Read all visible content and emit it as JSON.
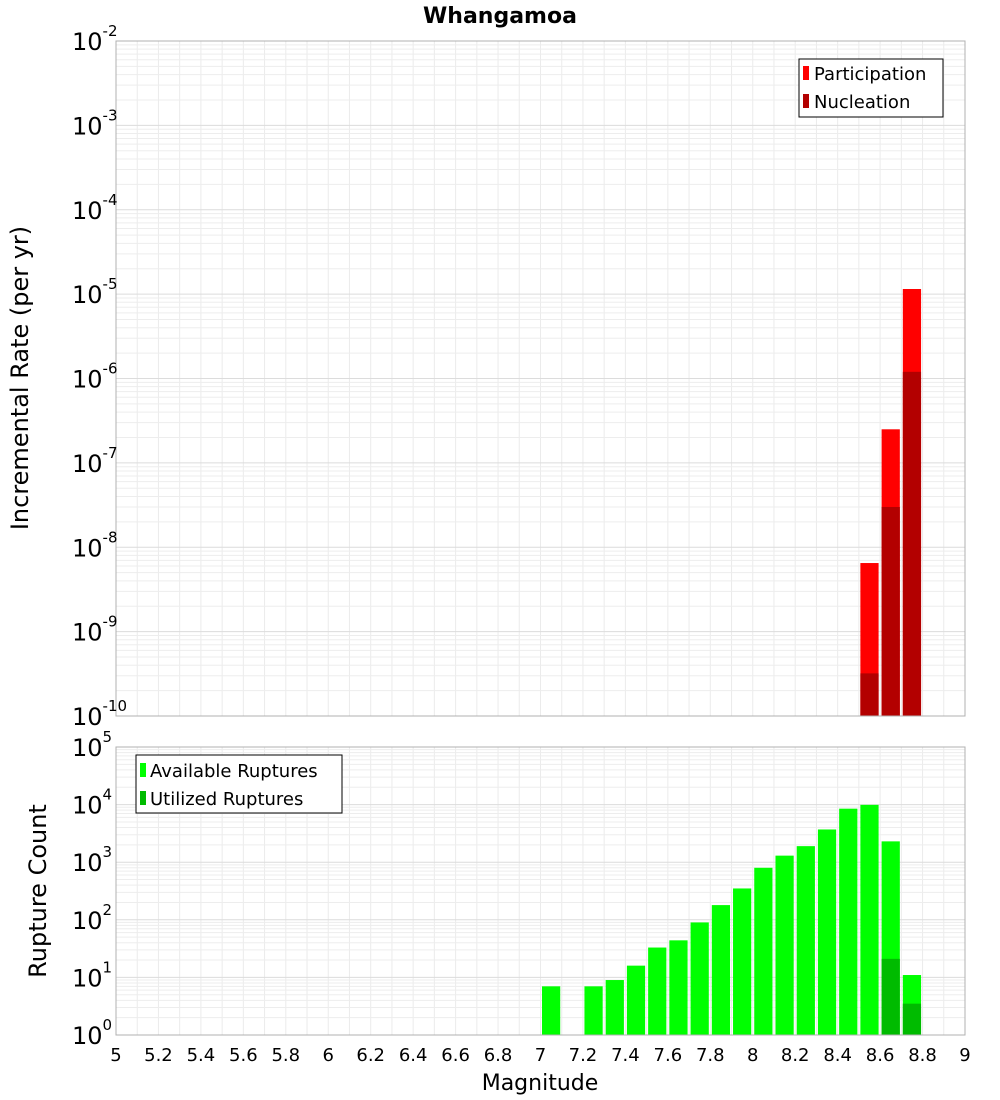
{
  "chart_data": [
    {
      "type": "bar",
      "title": "Whangamoa",
      "ylabel": "Incremental Rate (per yr)",
      "xlabel": "",
      "yscale": "log",
      "ylim_exp": [
        -10,
        -2
      ],
      "xlim": [
        5,
        9
      ],
      "bar_width": 0.1,
      "grid": true,
      "legend_position": "top-right",
      "series": [
        {
          "name": "Participation",
          "color": "#ff0000",
          "x": [
            8.55,
            8.65,
            8.75
          ],
          "values": [
            6.5e-09,
            2.5e-07,
            1.15e-05
          ]
        },
        {
          "name": "Nucleation",
          "color": "#b30000",
          "x": [
            8.55,
            8.65,
            8.75
          ],
          "values": [
            3.2e-10,
            3e-08,
            1.2e-06
          ]
        }
      ]
    },
    {
      "type": "bar",
      "title": "",
      "ylabel": "Rupture Count",
      "xlabel": "Magnitude",
      "yscale": "log",
      "ylim_exp": [
        0,
        5
      ],
      "xlim": [
        5,
        9
      ],
      "bar_width": 0.1,
      "grid": true,
      "legend_position": "top-left",
      "xticks": [
        "5",
        "5.2",
        "5.4",
        "5.6",
        "5.8",
        "6",
        "6.2",
        "6.4",
        "6.6",
        "6.8",
        "7",
        "7.2",
        "7.4",
        "7.6",
        "7.8",
        "8",
        "8.2",
        "8.4",
        "8.6",
        "8.8",
        "9"
      ],
      "series": [
        {
          "name": "Available Ruptures",
          "color": "#00ff00",
          "x": [
            7.05,
            7.25,
            7.35,
            7.45,
            7.55,
            7.65,
            7.75,
            7.85,
            7.95,
            8.05,
            8.15,
            8.25,
            8.35,
            8.45,
            8.55,
            8.65,
            8.75
          ],
          "values": [
            7,
            7,
            9,
            16,
            33,
            44,
            90,
            180,
            350,
            800,
            1300,
            1900,
            3700,
            8500,
            9900,
            2300,
            11
          ]
        },
        {
          "name": "Utilized Ruptures",
          "color": "#00bb00",
          "x": [
            8.55,
            8.65,
            8.75
          ],
          "values": [
            1,
            21,
            3.5
          ]
        }
      ]
    }
  ]
}
